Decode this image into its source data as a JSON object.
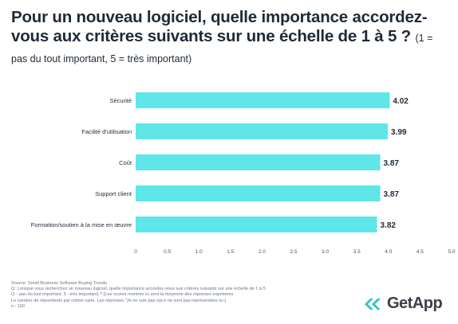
{
  "title": {
    "main": "Pour un nouveau logiciel, quelle importance accordez-vous aux critères suivants sur une échelle de 1 à 5 ?",
    "subtitle": "(1 = pas du tout important, 5 = très important)"
  },
  "colors": {
    "bar": "#5ee6e8",
    "text": "#1f2a36",
    "axis": "#bcc3ca",
    "logo": "#2fc3c9"
  },
  "chart_data": {
    "type": "bar",
    "orientation": "horizontal",
    "categories": [
      "Sécurité",
      "Facilité d'utilisation",
      "Coût",
      "Support client",
      "Formation/soutien à la mise en œuvre"
    ],
    "values": [
      4.02,
      3.99,
      3.87,
      3.87,
      3.82
    ],
    "value_labels": [
      "4.02",
      "3.99",
      "3.87",
      "3.87",
      "3.82"
    ],
    "xlim": [
      0,
      5
    ],
    "x_ticks": [
      "0",
      "0.5",
      "1.0",
      "1.5",
      "2.0",
      "2.5",
      "3.0",
      "3.5",
      "4.0",
      "4.5",
      "5.0"
    ],
    "grid": false
  },
  "footnotes": [
    "Source: Small Business Software Buying Trends",
    "Q: Lorsque vous recherchez un nouveau logiciel, quelle importance accordez-vous aux critères suivants sur une échelle de 1 à 5",
    "(1 - pas du tout important, 5 - très important) ? [Les scores montrés ici sont la moyenne des réponses exprimées.",
    "Le nombre de répondants par critère varie. Les réponses \"Je ne suis pas sûr.e ne sont pas représentées ici.]",
    "n : 100"
  ],
  "logo": {
    "name": "GetApp",
    "icon": "getapp-chevrons-icon"
  }
}
